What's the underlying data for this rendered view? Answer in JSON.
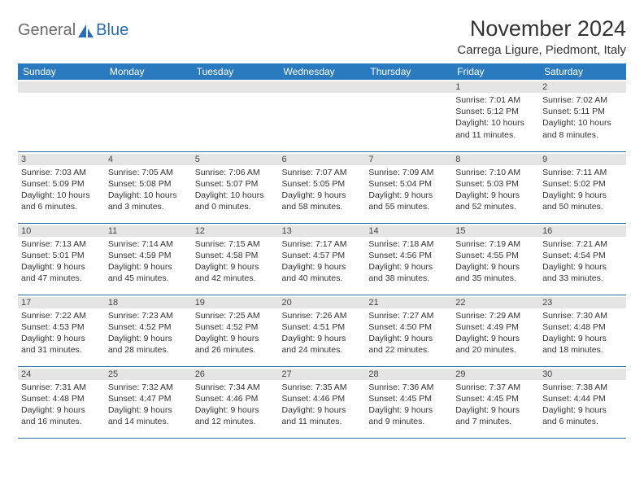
{
  "logo": {
    "text1": "General",
    "text2": "Blue"
  },
  "title": "November 2024",
  "location": "Carrega Ligure, Piedmont, Italy",
  "colors": {
    "header_bg": "#2a7ac0",
    "header_fg": "#ffffff",
    "border": "#2a6db5",
    "daynum_bg": "#e5e5e5",
    "text": "#333333",
    "logo_gray": "#6b6b6b",
    "logo_blue": "#2a6db5"
  },
  "weekdays": [
    "Sunday",
    "Monday",
    "Tuesday",
    "Wednesday",
    "Thursday",
    "Friday",
    "Saturday"
  ],
  "weeks": [
    [
      {
        "n": "",
        "sunrise": "",
        "sunset": "",
        "daylight": ""
      },
      {
        "n": "",
        "sunrise": "",
        "sunset": "",
        "daylight": ""
      },
      {
        "n": "",
        "sunrise": "",
        "sunset": "",
        "daylight": ""
      },
      {
        "n": "",
        "sunrise": "",
        "sunset": "",
        "daylight": ""
      },
      {
        "n": "",
        "sunrise": "",
        "sunset": "",
        "daylight": ""
      },
      {
        "n": "1",
        "sunrise": "Sunrise: 7:01 AM",
        "sunset": "Sunset: 5:12 PM",
        "daylight": "Daylight: 10 hours and 11 minutes."
      },
      {
        "n": "2",
        "sunrise": "Sunrise: 7:02 AM",
        "sunset": "Sunset: 5:11 PM",
        "daylight": "Daylight: 10 hours and 8 minutes."
      }
    ],
    [
      {
        "n": "3",
        "sunrise": "Sunrise: 7:03 AM",
        "sunset": "Sunset: 5:09 PM",
        "daylight": "Daylight: 10 hours and 6 minutes."
      },
      {
        "n": "4",
        "sunrise": "Sunrise: 7:05 AM",
        "sunset": "Sunset: 5:08 PM",
        "daylight": "Daylight: 10 hours and 3 minutes."
      },
      {
        "n": "5",
        "sunrise": "Sunrise: 7:06 AM",
        "sunset": "Sunset: 5:07 PM",
        "daylight": "Daylight: 10 hours and 0 minutes."
      },
      {
        "n": "6",
        "sunrise": "Sunrise: 7:07 AM",
        "sunset": "Sunset: 5:05 PM",
        "daylight": "Daylight: 9 hours and 58 minutes."
      },
      {
        "n": "7",
        "sunrise": "Sunrise: 7:09 AM",
        "sunset": "Sunset: 5:04 PM",
        "daylight": "Daylight: 9 hours and 55 minutes."
      },
      {
        "n": "8",
        "sunrise": "Sunrise: 7:10 AM",
        "sunset": "Sunset: 5:03 PM",
        "daylight": "Daylight: 9 hours and 52 minutes."
      },
      {
        "n": "9",
        "sunrise": "Sunrise: 7:11 AM",
        "sunset": "Sunset: 5:02 PM",
        "daylight": "Daylight: 9 hours and 50 minutes."
      }
    ],
    [
      {
        "n": "10",
        "sunrise": "Sunrise: 7:13 AM",
        "sunset": "Sunset: 5:01 PM",
        "daylight": "Daylight: 9 hours and 47 minutes."
      },
      {
        "n": "11",
        "sunrise": "Sunrise: 7:14 AM",
        "sunset": "Sunset: 4:59 PM",
        "daylight": "Daylight: 9 hours and 45 minutes."
      },
      {
        "n": "12",
        "sunrise": "Sunrise: 7:15 AM",
        "sunset": "Sunset: 4:58 PM",
        "daylight": "Daylight: 9 hours and 42 minutes."
      },
      {
        "n": "13",
        "sunrise": "Sunrise: 7:17 AM",
        "sunset": "Sunset: 4:57 PM",
        "daylight": "Daylight: 9 hours and 40 minutes."
      },
      {
        "n": "14",
        "sunrise": "Sunrise: 7:18 AM",
        "sunset": "Sunset: 4:56 PM",
        "daylight": "Daylight: 9 hours and 38 minutes."
      },
      {
        "n": "15",
        "sunrise": "Sunrise: 7:19 AM",
        "sunset": "Sunset: 4:55 PM",
        "daylight": "Daylight: 9 hours and 35 minutes."
      },
      {
        "n": "16",
        "sunrise": "Sunrise: 7:21 AM",
        "sunset": "Sunset: 4:54 PM",
        "daylight": "Daylight: 9 hours and 33 minutes."
      }
    ],
    [
      {
        "n": "17",
        "sunrise": "Sunrise: 7:22 AM",
        "sunset": "Sunset: 4:53 PM",
        "daylight": "Daylight: 9 hours and 31 minutes."
      },
      {
        "n": "18",
        "sunrise": "Sunrise: 7:23 AM",
        "sunset": "Sunset: 4:52 PM",
        "daylight": "Daylight: 9 hours and 28 minutes."
      },
      {
        "n": "19",
        "sunrise": "Sunrise: 7:25 AM",
        "sunset": "Sunset: 4:52 PM",
        "daylight": "Daylight: 9 hours and 26 minutes."
      },
      {
        "n": "20",
        "sunrise": "Sunrise: 7:26 AM",
        "sunset": "Sunset: 4:51 PM",
        "daylight": "Daylight: 9 hours and 24 minutes."
      },
      {
        "n": "21",
        "sunrise": "Sunrise: 7:27 AM",
        "sunset": "Sunset: 4:50 PM",
        "daylight": "Daylight: 9 hours and 22 minutes."
      },
      {
        "n": "22",
        "sunrise": "Sunrise: 7:29 AM",
        "sunset": "Sunset: 4:49 PM",
        "daylight": "Daylight: 9 hours and 20 minutes."
      },
      {
        "n": "23",
        "sunrise": "Sunrise: 7:30 AM",
        "sunset": "Sunset: 4:48 PM",
        "daylight": "Daylight: 9 hours and 18 minutes."
      }
    ],
    [
      {
        "n": "24",
        "sunrise": "Sunrise: 7:31 AM",
        "sunset": "Sunset: 4:48 PM",
        "daylight": "Daylight: 9 hours and 16 minutes."
      },
      {
        "n": "25",
        "sunrise": "Sunrise: 7:32 AM",
        "sunset": "Sunset: 4:47 PM",
        "daylight": "Daylight: 9 hours and 14 minutes."
      },
      {
        "n": "26",
        "sunrise": "Sunrise: 7:34 AM",
        "sunset": "Sunset: 4:46 PM",
        "daylight": "Daylight: 9 hours and 12 minutes."
      },
      {
        "n": "27",
        "sunrise": "Sunrise: 7:35 AM",
        "sunset": "Sunset: 4:46 PM",
        "daylight": "Daylight: 9 hours and 11 minutes."
      },
      {
        "n": "28",
        "sunrise": "Sunrise: 7:36 AM",
        "sunset": "Sunset: 4:45 PM",
        "daylight": "Daylight: 9 hours and 9 minutes."
      },
      {
        "n": "29",
        "sunrise": "Sunrise: 7:37 AM",
        "sunset": "Sunset: 4:45 PM",
        "daylight": "Daylight: 9 hours and 7 minutes."
      },
      {
        "n": "30",
        "sunrise": "Sunrise: 7:38 AM",
        "sunset": "Sunset: 4:44 PM",
        "daylight": "Daylight: 9 hours and 6 minutes."
      }
    ]
  ]
}
